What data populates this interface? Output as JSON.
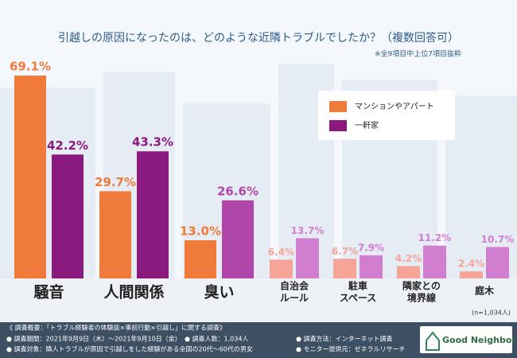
{
  "chart_data": {
    "type": "bar",
    "title": "引越しの原因になったのは、どのような近隣トラブルでしたか？（複数回答可）",
    "subtitle": "※全9項目中上位7項目抜粋",
    "categories": [
      [
        "騒音"
      ],
      [
        "人間関係"
      ],
      [
        "臭い"
      ],
      [
        "自治会",
        "ルール"
      ],
      [
        "駐車",
        "スペース"
      ],
      [
        "隣家との",
        "境界線"
      ],
      [
        "庭木"
      ]
    ],
    "series": [
      {
        "name": "マンションやアパート",
        "color": "#f07a3a",
        "colors": [
          "#f07a3a",
          "#f07a3a",
          "#f07a3a",
          "#f6a398",
          "#f6a398",
          "#f6a398",
          "#f6a398"
        ],
        "values": [
          69.1,
          29.7,
          13.0,
          6.4,
          6.7,
          4.2,
          2.4
        ],
        "value_labels": [
          "69.1%",
          "29.7%",
          "13.0%",
          "6.4%",
          "6.7%",
          "4.2%",
          "2.4%"
        ]
      },
      {
        "name": "一軒家",
        "color": "#8b1a7f",
        "colors": [
          "#8b1a7f",
          "#8b1a7f",
          "#b046a9",
          "#d27ed0",
          "#d27ed0",
          "#d27ed0",
          "#d27ed0"
        ],
        "values": [
          42.2,
          43.3,
          26.6,
          13.7,
          7.9,
          11.2,
          10.7
        ],
        "value_labels": [
          "42.2%",
          "43.3%",
          "26.6%",
          "13.7%",
          "7.9%",
          "11.2%",
          "10.7%"
        ]
      }
    ],
    "sample_note": "(n=1,034人)"
  },
  "footer": {
    "heading": "《 調査概要：「トラブル経験者の体験談×事前行動×引越し」に関する調査》",
    "items": [
      "● 調査期間：2021年9月9日（木）〜2021年9月10日（金）",
      "● 調査人数：1,034人",
      "● 調査方法：インターネット調査",
      "● 調査対象：隣人トラブルが原因で引越しをした経験がある全国の20代〜60代の男女",
      "● モニター提供元：ゼネラルリサーチ"
    ],
    "logo": "Good Neighbor"
  }
}
